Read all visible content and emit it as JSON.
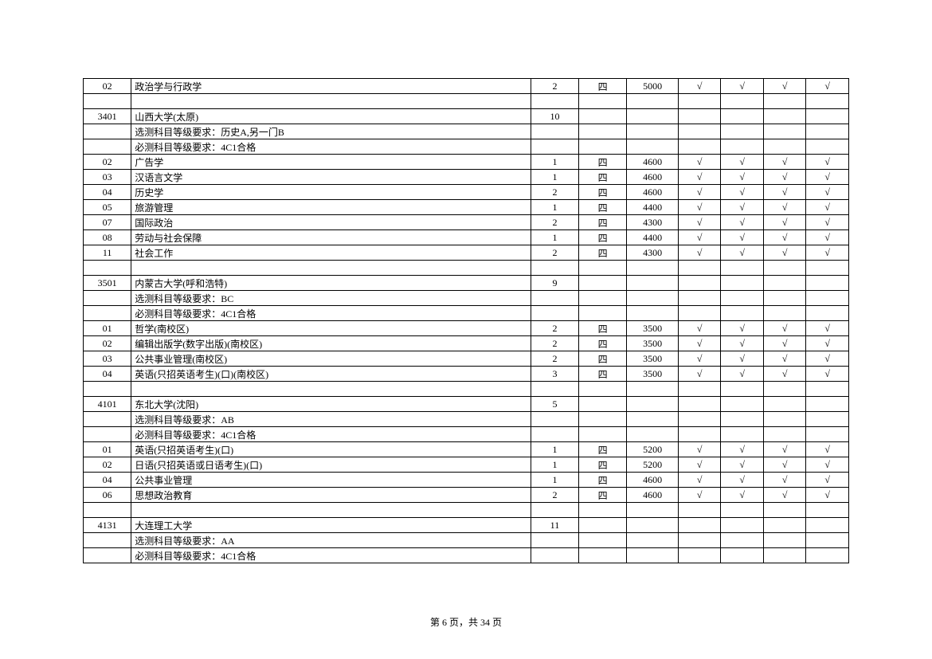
{
  "footer": "第 6 页，共 34 页",
  "check": "√",
  "rows": [
    {
      "code": "02",
      "name": "政治学与行政学",
      "num": "2",
      "year": "四",
      "fee": "5000",
      "c1": true,
      "c2": true,
      "c3": true,
      "c4": true
    },
    {
      "spacer": true
    },
    {
      "code": "3401",
      "name": "山西大学(太原)",
      "num": "10"
    },
    {
      "name": "选测科目等级要求：历史A,另一门B"
    },
    {
      "name": "必测科目等级要求：4C1合格"
    },
    {
      "code": "02",
      "name": "广告学",
      "num": "1",
      "year": "四",
      "fee": "4600",
      "c1": true,
      "c2": true,
      "c3": true,
      "c4": true
    },
    {
      "code": "03",
      "name": "汉语言文学",
      "num": "1",
      "year": "四",
      "fee": "4600",
      "c1": true,
      "c2": true,
      "c3": true,
      "c4": true
    },
    {
      "code": "04",
      "name": "历史学",
      "num": "2",
      "year": "四",
      "fee": "4600",
      "c1": true,
      "c2": true,
      "c3": true,
      "c4": true
    },
    {
      "code": "05",
      "name": "旅游管理",
      "num": "1",
      "year": "四",
      "fee": "4400",
      "c1": true,
      "c2": true,
      "c3": true,
      "c4": true
    },
    {
      "code": "07",
      "name": "国际政治",
      "num": "2",
      "year": "四",
      "fee": "4300",
      "c1": true,
      "c2": true,
      "c3": true,
      "c4": true
    },
    {
      "code": "08",
      "name": "劳动与社会保障",
      "num": "1",
      "year": "四",
      "fee": "4400",
      "c1": true,
      "c2": true,
      "c3": true,
      "c4": true
    },
    {
      "code": "11",
      "name": "社会工作",
      "num": "2",
      "year": "四",
      "fee": "4300",
      "c1": true,
      "c2": true,
      "c3": true,
      "c4": true
    },
    {
      "spacer": true
    },
    {
      "code": "3501",
      "name": "内蒙古大学(呼和浩特)",
      "num": "9"
    },
    {
      "name": "选测科目等级要求：BC"
    },
    {
      "name": "必测科目等级要求：4C1合格"
    },
    {
      "code": "01",
      "name": "哲学(南校区)",
      "num": "2",
      "year": "四",
      "fee": "3500",
      "c1": true,
      "c2": true,
      "c3": true,
      "c4": true
    },
    {
      "code": "02",
      "name": "编辑出版学(数字出版)(南校区)",
      "num": "2",
      "year": "四",
      "fee": "3500",
      "c1": true,
      "c2": true,
      "c3": true,
      "c4": true
    },
    {
      "code": "03",
      "name": "公共事业管理(南校区)",
      "num": "2",
      "year": "四",
      "fee": "3500",
      "c1": true,
      "c2": true,
      "c3": true,
      "c4": true
    },
    {
      "code": "04",
      "name": "英语(只招英语考生)(口)(南校区)",
      "num": "3",
      "year": "四",
      "fee": "3500",
      "c1": true,
      "c2": true,
      "c3": true,
      "c4": true
    },
    {
      "spacer": true
    },
    {
      "code": "4101",
      "name": "东北大学(沈阳)",
      "num": "5"
    },
    {
      "name": "选测科目等级要求：AB"
    },
    {
      "name": "必测科目等级要求：4C1合格"
    },
    {
      "code": "01",
      "name": "英语(只招英语考生)(口)",
      "num": "1",
      "year": "四",
      "fee": "5200",
      "c1": true,
      "c2": true,
      "c3": true,
      "c4": true
    },
    {
      "code": "02",
      "name": "日语(只招英语或日语考生)(口)",
      "num": "1",
      "year": "四",
      "fee": "5200",
      "c1": true,
      "c2": true,
      "c3": true,
      "c4": true
    },
    {
      "code": "04",
      "name": "公共事业管理",
      "num": "1",
      "year": "四",
      "fee": "4600",
      "c1": true,
      "c2": true,
      "c3": true,
      "c4": true
    },
    {
      "code": "06",
      "name": "思想政治教育",
      "num": "2",
      "year": "四",
      "fee": "4600",
      "c1": true,
      "c2": true,
      "c3": true,
      "c4": true
    },
    {
      "spacer": true
    },
    {
      "code": "4131",
      "name": "大连理工大学",
      "num": "11"
    },
    {
      "name": "选测科目等级要求：AA"
    },
    {
      "name": "必测科目等级要求：4C1合格"
    }
  ]
}
